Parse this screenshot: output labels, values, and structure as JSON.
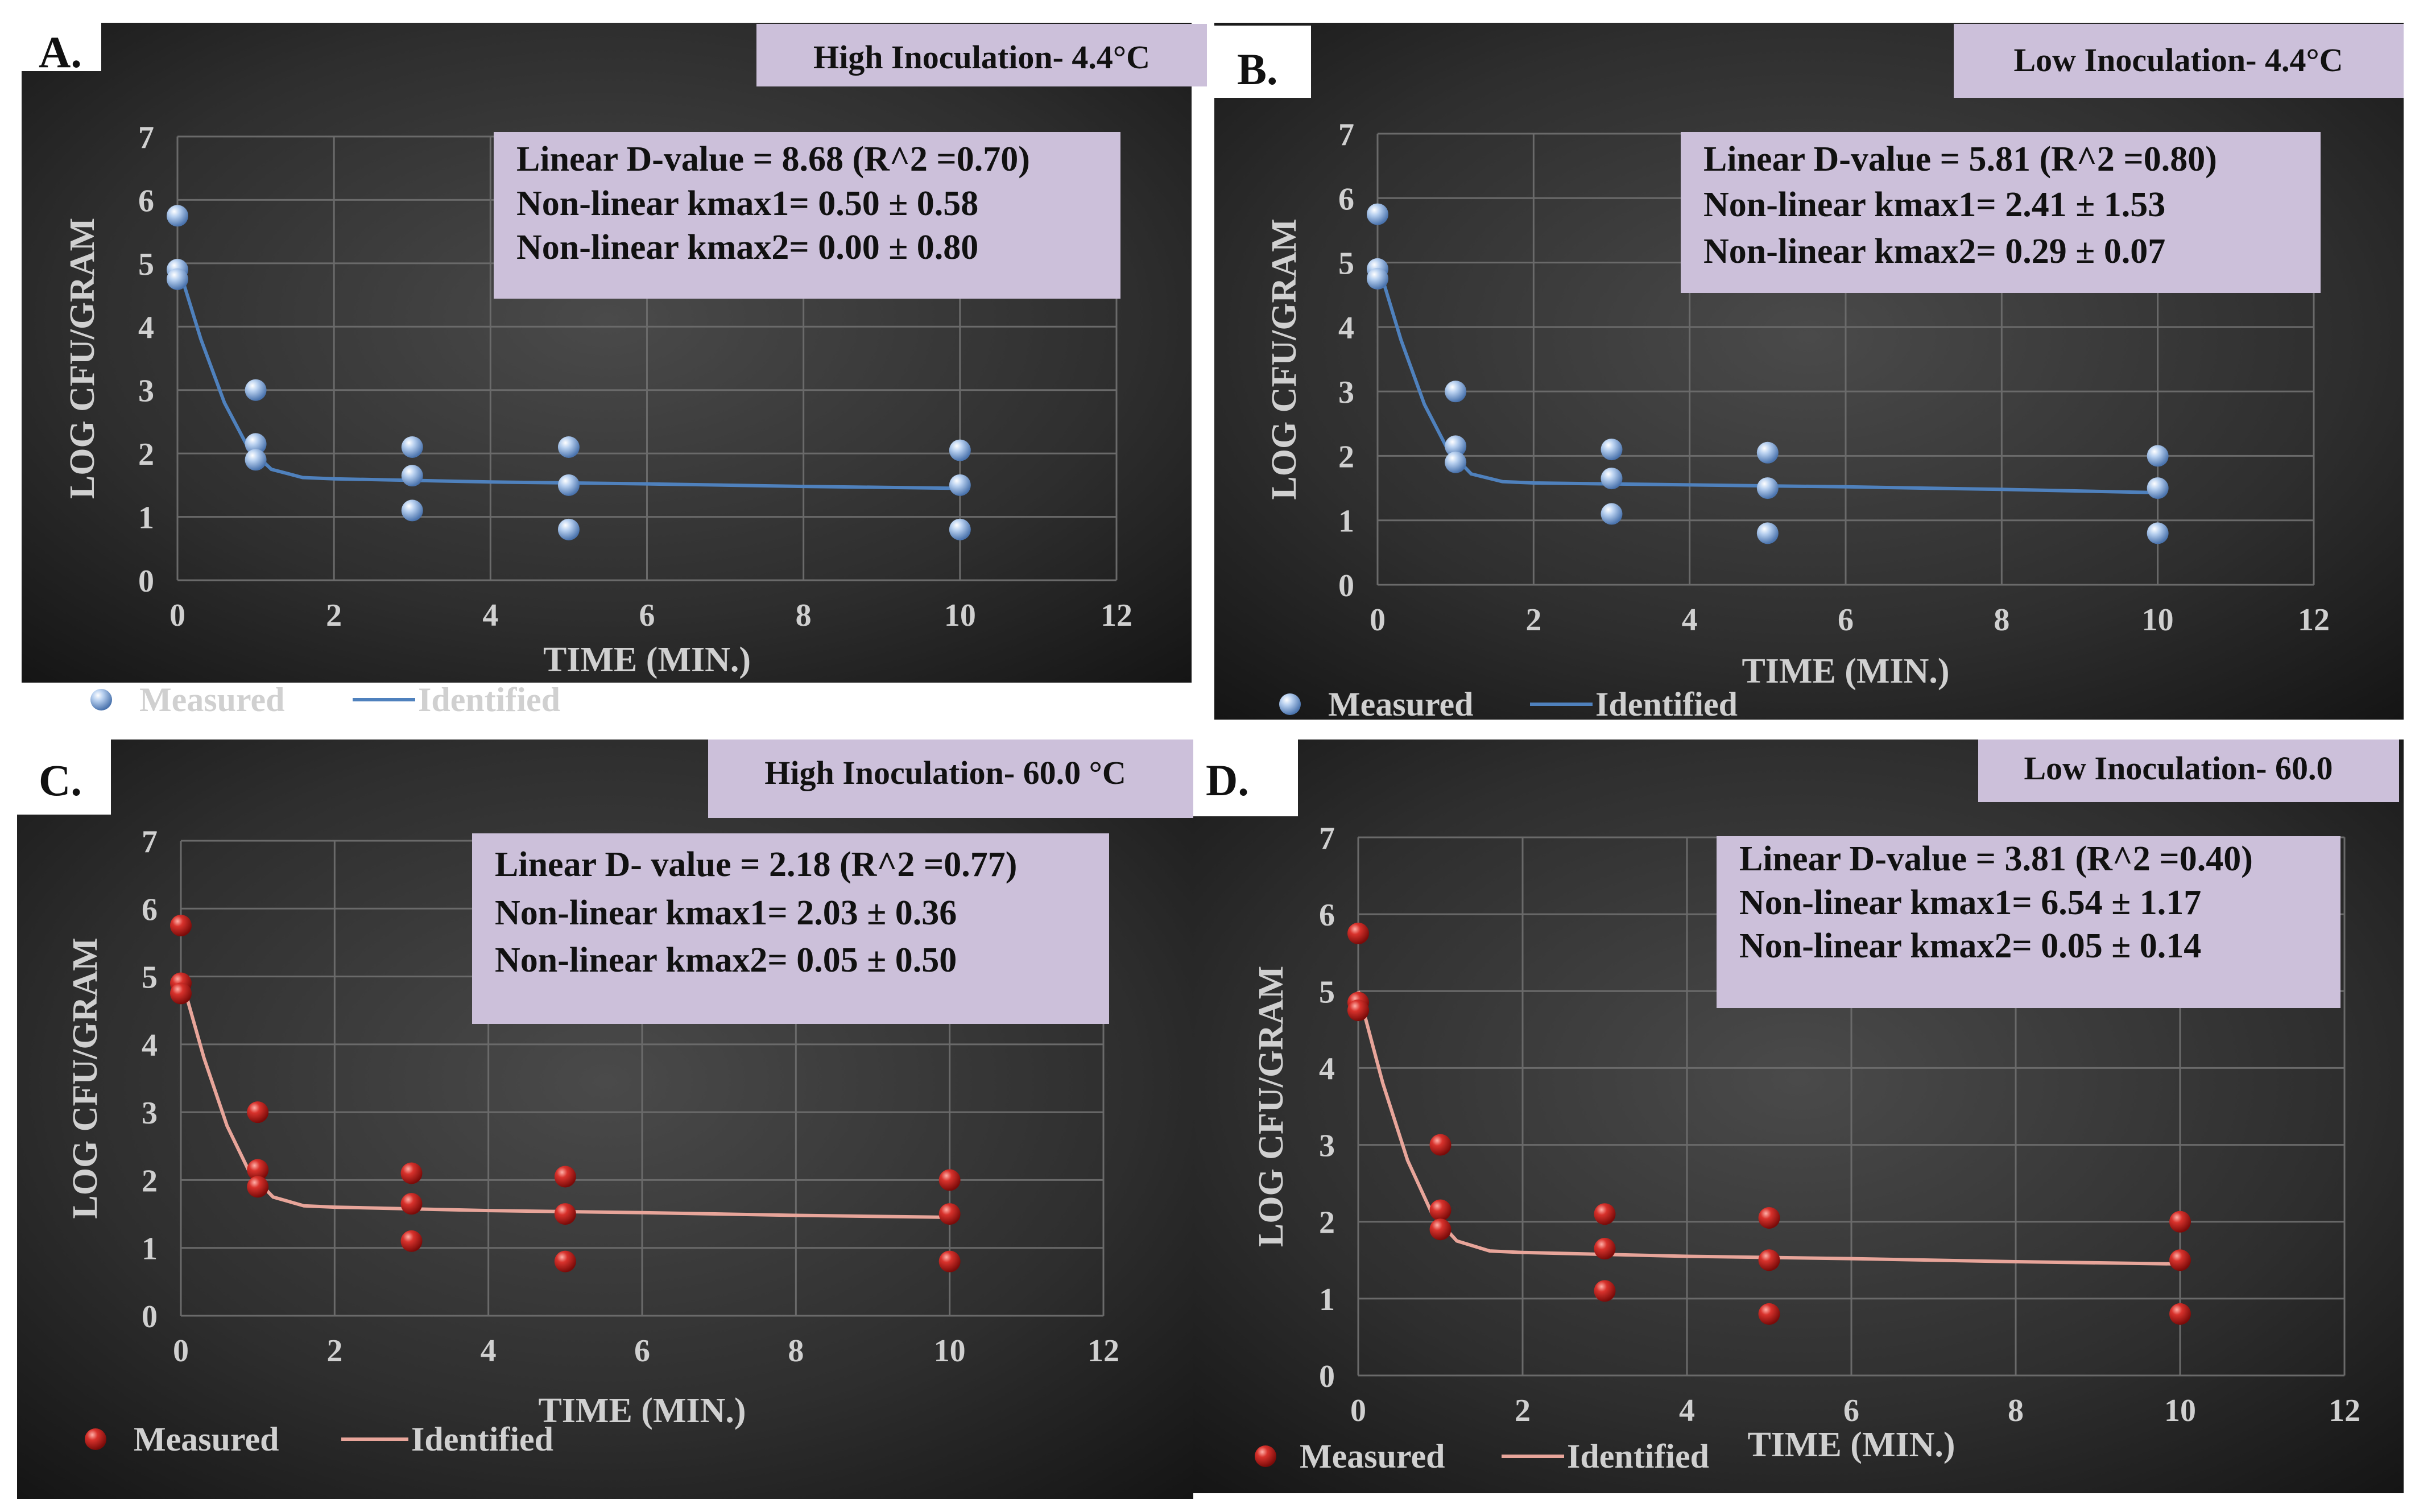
{
  "colors": {
    "blue_series": "#8fb4e3",
    "red_series": "#c8201e",
    "blue_line": "#4f81bd",
    "red_line": "#e8a59a",
    "box_fill": "#ccc0da",
    "gridline": "#6a6a6a"
  },
  "chart_data": [
    {
      "type": "scatter",
      "panel_label": "A.",
      "title": "High Inoculation- 4.4°C",
      "xlabel": "TIME (MIN.)",
      "ylabel": "LOG CFU/GRAM",
      "xlim": [
        0,
        12
      ],
      "ylim": [
        0,
        7
      ],
      "xticks": [
        0,
        2,
        4,
        6,
        8,
        10,
        12
      ],
      "yticks": [
        0,
        1,
        2,
        3,
        4,
        5,
        6,
        7
      ],
      "grid": true,
      "color": "blue",
      "stats": [
        "Linear D-value = 8.68 (R^2 =0.70)",
        "Non-linear kmax1= 0.50 ± 0.58",
        "Non-linear kmax2= 0.00 ± 0.80"
      ],
      "legend": [
        "Measured",
        "Identified"
      ],
      "measured": [
        [
          0,
          5.75
        ],
        [
          0,
          4.9
        ],
        [
          0,
          4.75
        ],
        [
          1,
          3.0
        ],
        [
          1,
          2.15
        ],
        [
          1,
          1.9
        ],
        [
          3,
          2.1
        ],
        [
          3,
          1.65
        ],
        [
          3,
          1.1
        ],
        [
          5,
          2.1
        ],
        [
          5,
          1.5
        ],
        [
          5,
          0.8
        ],
        [
          10,
          2.05
        ],
        [
          10,
          1.5
        ],
        [
          10,
          0.8
        ]
      ],
      "identified": [
        [
          0,
          5.0
        ],
        [
          0.3,
          3.8
        ],
        [
          0.6,
          2.8
        ],
        [
          0.9,
          2.1
        ],
        [
          1.2,
          1.75
        ],
        [
          1.6,
          1.62
        ],
        [
          2,
          1.6
        ],
        [
          4,
          1.55
        ],
        [
          6,
          1.52
        ],
        [
          8,
          1.48
        ],
        [
          10,
          1.45
        ]
      ]
    },
    {
      "type": "scatter",
      "panel_label": "B.",
      "title": "Low Inoculation- 4.4°C",
      "xlabel": "TIME (MIN.)",
      "ylabel": "LOG CFU/GRAM",
      "xlim": [
        0,
        12
      ],
      "ylim": [
        0,
        7
      ],
      "xticks": [
        0,
        2,
        4,
        6,
        8,
        10,
        12
      ],
      "yticks": [
        0,
        1,
        2,
        3,
        4,
        5,
        6,
        7
      ],
      "grid": true,
      "color": "blue",
      "stats": [
        "Linear D-value = 5.81 (R^2 =0.80)",
        "Non-linear kmax1= 2.41 ± 1.53",
        "Non-linear kmax2= 0.29 ± 0.07"
      ],
      "legend": [
        "Measured",
        "Identified"
      ],
      "measured": [
        [
          0,
          5.75
        ],
        [
          0,
          4.9
        ],
        [
          0,
          4.75
        ],
        [
          1,
          3.0
        ],
        [
          1,
          2.15
        ],
        [
          1,
          1.9
        ],
        [
          3,
          2.1
        ],
        [
          3,
          1.65
        ],
        [
          3,
          1.1
        ],
        [
          5,
          2.05
        ],
        [
          5,
          1.5
        ],
        [
          5,
          0.8
        ],
        [
          10,
          2.0
        ],
        [
          10,
          1.5
        ],
        [
          10,
          0.8
        ]
      ],
      "identified": [
        [
          0,
          5.0
        ],
        [
          0.3,
          3.8
        ],
        [
          0.6,
          2.8
        ],
        [
          0.9,
          2.1
        ],
        [
          1.2,
          1.72
        ],
        [
          1.6,
          1.6
        ],
        [
          2,
          1.58
        ],
        [
          4,
          1.55
        ],
        [
          6,
          1.52
        ],
        [
          8,
          1.48
        ],
        [
          10,
          1.43
        ]
      ]
    },
    {
      "type": "scatter",
      "panel_label": "C.",
      "title": "High Inoculation- 60.0 °C",
      "xlabel": "TIME (MIN.)",
      "ylabel": "LOG CFU/GRAM",
      "xlim": [
        0,
        12
      ],
      "ylim": [
        0,
        7
      ],
      "xticks": [
        0,
        2,
        4,
        6,
        8,
        10,
        12
      ],
      "yticks": [
        0,
        1,
        2,
        3,
        4,
        5,
        6,
        7
      ],
      "grid": true,
      "color": "red",
      "stats": [
        "Linear D- value = 2.18 (R^2 =0.77)",
        "Non-linear kmax1= 2.03 ± 0.36",
        "Non-linear kmax2= 0.05 ± 0.50"
      ],
      "legend": [
        "Measured",
        "Identified"
      ],
      "measured": [
        [
          0,
          5.75
        ],
        [
          0,
          4.9
        ],
        [
          0,
          4.75
        ],
        [
          1,
          3.0
        ],
        [
          1,
          2.15
        ],
        [
          1,
          1.9
        ],
        [
          3,
          2.1
        ],
        [
          3,
          1.65
        ],
        [
          3,
          1.1
        ],
        [
          5,
          2.05
        ],
        [
          5,
          1.5
        ],
        [
          5,
          0.8
        ],
        [
          10,
          2.0
        ],
        [
          10,
          1.5
        ],
        [
          10,
          0.8
        ]
      ],
      "identified": [
        [
          0,
          5.0
        ],
        [
          0.3,
          3.8
        ],
        [
          0.6,
          2.8
        ],
        [
          0.9,
          2.1
        ],
        [
          1.2,
          1.75
        ],
        [
          1.6,
          1.62
        ],
        [
          2,
          1.6
        ],
        [
          4,
          1.55
        ],
        [
          6,
          1.52
        ],
        [
          8,
          1.48
        ],
        [
          10,
          1.45
        ]
      ]
    },
    {
      "type": "scatter",
      "panel_label": "D.",
      "title": "Low Inoculation- 60.0",
      "xlabel": "TIME (MIN.)",
      "ylabel": "LOG CFU/GRAM",
      "xlim": [
        0,
        12
      ],
      "ylim": [
        0,
        7
      ],
      "xticks": [
        0,
        2,
        4,
        6,
        8,
        10,
        12
      ],
      "yticks": [
        0,
        1,
        2,
        3,
        4,
        5,
        6,
        7
      ],
      "grid": true,
      "color": "red",
      "stats": [
        "Linear D-value = 3.81 (R^2 =0.40)",
        "Non-linear kmax1= 6.54 ± 1.17",
        "Non-linear kmax2= 0.05 ± 0.14"
      ],
      "legend": [
        "Measured",
        "Identified"
      ],
      "measured": [
        [
          0,
          5.75
        ],
        [
          0,
          4.85
        ],
        [
          0,
          4.75
        ],
        [
          1,
          3.0
        ],
        [
          1,
          2.15
        ],
        [
          1,
          1.9
        ],
        [
          3,
          2.1
        ],
        [
          3,
          1.65
        ],
        [
          3,
          1.1
        ],
        [
          5,
          2.05
        ],
        [
          5,
          1.5
        ],
        [
          5,
          0.8
        ],
        [
          10,
          2.0
        ],
        [
          10,
          1.5
        ],
        [
          10,
          0.8
        ]
      ],
      "identified": [
        [
          0,
          5.0
        ],
        [
          0.3,
          3.8
        ],
        [
          0.6,
          2.8
        ],
        [
          0.9,
          2.1
        ],
        [
          1.2,
          1.75
        ],
        [
          1.6,
          1.62
        ],
        [
          2,
          1.6
        ],
        [
          4,
          1.55
        ],
        [
          6,
          1.52
        ],
        [
          8,
          1.48
        ],
        [
          10,
          1.45
        ]
      ]
    }
  ]
}
